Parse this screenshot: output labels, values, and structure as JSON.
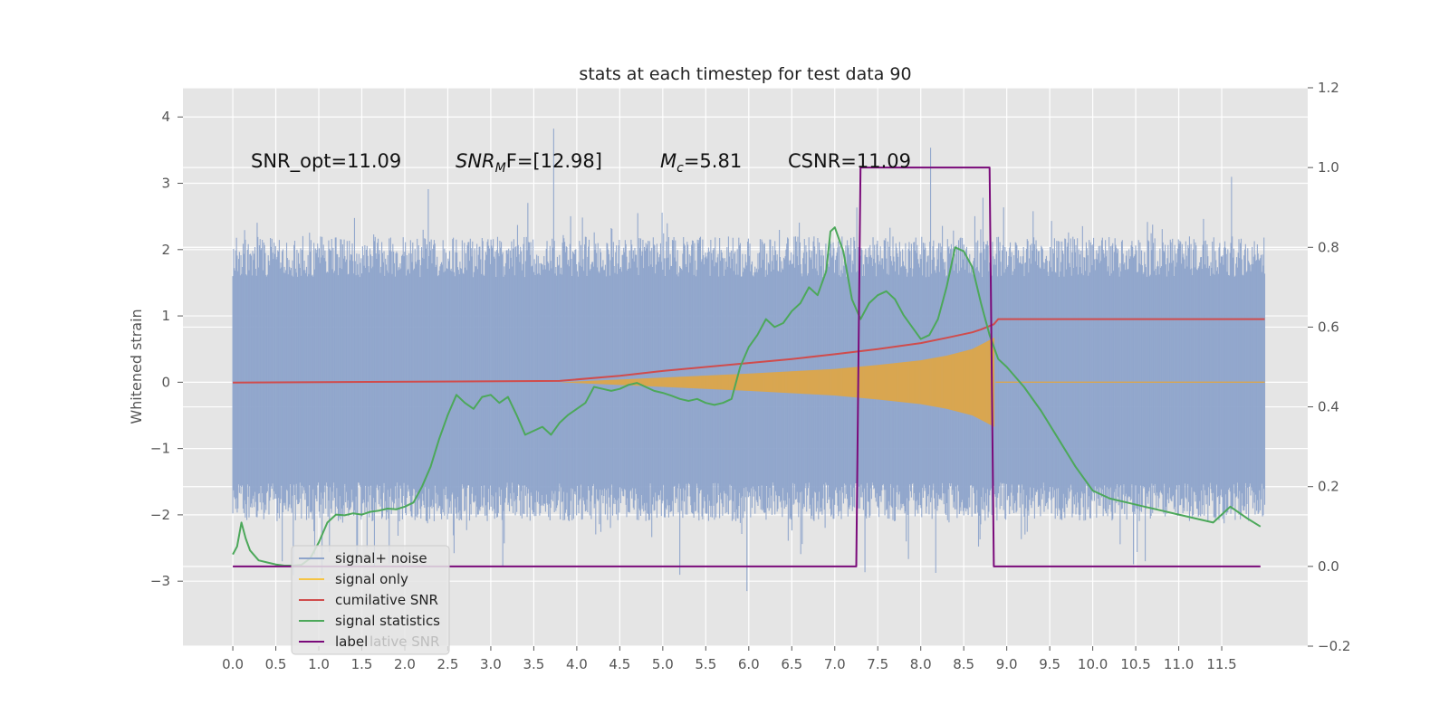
{
  "chart_data": {
    "type": "line",
    "title": "stats at each timestep for test data 90",
    "ylabel": "Whitened strain",
    "y2label": "",
    "xlim": [
      -0.58,
      12.5
    ],
    "ylim": [
      -3.98,
      4.44
    ],
    "y2lim": [
      -0.2,
      1.2
    ],
    "grid": true,
    "x_ticks": [
      "0.0",
      "0.5",
      "1.0",
      "1.5",
      "2.0",
      "2.5",
      "3.0",
      "3.5",
      "4.0",
      "4.5",
      "5.0",
      "5.5",
      "6.0",
      "6.5",
      "7.0",
      "7.5",
      "8.0",
      "8.5",
      "9.0",
      "9.5",
      "10.0",
      "10.5",
      "11.0",
      "11.5"
    ],
    "y_ticks": [
      4,
      3,
      2,
      1,
      0,
      -1,
      -2,
      -3
    ],
    "y_tick_labels": [
      "4",
      "3",
      "2",
      "1",
      "0",
      "−1",
      "−2",
      "−3"
    ],
    "y2_ticks": [
      1.2,
      1.0,
      0.8,
      0.6,
      0.4,
      0.2,
      0.0,
      -0.2
    ],
    "y2_tick_labels": [
      "1.2",
      "1.0",
      "0.8",
      "0.6",
      "0.4",
      "0.2",
      "0.0",
      "−0.2"
    ],
    "annotations": [
      {
        "text": "SNR_opt=11.09"
      },
      {
        "base": "SNR",
        "sub": "M",
        "rest": "F=[12.98]"
      },
      {
        "base": "M",
        "sub": "c",
        "rest": "=5.81"
      },
      {
        "text": "CSNR=11.09"
      }
    ],
    "legend_position": "lower left",
    "legend": [
      {
        "label": "signal+ noise",
        "color": "#8ea4cb"
      },
      {
        "label": "signal only",
        "color": "#f5c444"
      },
      {
        "label": "cumilative SNR",
        "color": "#d04c4c"
      },
      {
        "label": "signal statistics",
        "color": "#4ca85a"
      },
      {
        "label": "label",
        "color": "#7a0a7a"
      }
    ],
    "legend_overlap_text": "lative SNR",
    "series": [
      {
        "name": "signal+ noise",
        "axis": "left",
        "color": "#8ea4cb",
        "style": "noise",
        "x_range": [
          0.0,
          12.0
        ],
        "typical_envelope": [
          -2.1,
          2.2
        ],
        "extreme_range": [
          -3.6,
          4.1
        ]
      },
      {
        "name": "signal only",
        "axis": "left",
        "color": "#d9a650",
        "style": "chirp",
        "x_range": [
          3.8,
          8.85
        ],
        "amplitude": [
          [
            3.8,
            0.0
          ],
          [
            5.0,
            0.07
          ],
          [
            6.0,
            0.13
          ],
          [
            7.0,
            0.2
          ],
          [
            7.5,
            0.26
          ],
          [
            8.0,
            0.33
          ],
          [
            8.3,
            0.4
          ],
          [
            8.6,
            0.5
          ],
          [
            8.75,
            0.6
          ],
          [
            8.85,
            0.67
          ],
          [
            8.87,
            0.0
          ]
        ]
      },
      {
        "name": "cumilative SNR",
        "axis": "right",
        "color": "#d04c4c",
        "x": [
          0.0,
          3.8,
          4.5,
          5.0,
          5.5,
          6.0,
          6.5,
          7.0,
          7.5,
          8.0,
          8.3,
          8.6,
          8.7,
          8.85,
          8.9,
          12.0
        ],
        "y": [
          0.461,
          0.465,
          0.478,
          0.49,
          0.5,
          0.51,
          0.52,
          0.532,
          0.545,
          0.56,
          0.573,
          0.587,
          0.594,
          0.607,
          0.62,
          0.62
        ]
      },
      {
        "name": "signal statistics",
        "axis": "right",
        "color": "#4ca85a",
        "x": [
          0.0,
          0.05,
          0.1,
          0.15,
          0.2,
          0.3,
          0.4,
          0.5,
          0.6,
          0.7,
          0.8,
          0.9,
          1.0,
          1.1,
          1.2,
          1.3,
          1.4,
          1.5,
          1.6,
          1.7,
          1.8,
          1.9,
          2.0,
          2.1,
          2.2,
          2.3,
          2.4,
          2.5,
          2.6,
          2.7,
          2.8,
          2.9,
          3.0,
          3.1,
          3.2,
          3.3,
          3.4,
          3.5,
          3.6,
          3.7,
          3.8,
          3.9,
          4.0,
          4.1,
          4.2,
          4.3,
          4.4,
          4.5,
          4.6,
          4.7,
          4.8,
          4.9,
          5.0,
          5.1,
          5.2,
          5.3,
          5.4,
          5.5,
          5.6,
          5.7,
          5.8,
          5.9,
          6.0,
          6.1,
          6.2,
          6.3,
          6.4,
          6.5,
          6.6,
          6.7,
          6.8,
          6.9,
          6.95,
          7.0,
          7.1,
          7.2,
          7.3,
          7.4,
          7.5,
          7.6,
          7.7,
          7.8,
          7.9,
          8.0,
          8.1,
          8.2,
          8.3,
          8.4,
          8.5,
          8.6,
          8.7,
          8.8,
          8.9,
          9.0,
          9.2,
          9.4,
          9.6,
          9.8,
          10.0,
          10.2,
          10.4,
          10.6,
          10.8,
          11.0,
          11.2,
          11.4,
          11.5,
          11.6,
          11.8,
          11.95
        ],
        "y": [
          0.03,
          0.05,
          0.11,
          0.07,
          0.04,
          0.015,
          0.01,
          0.005,
          0.002,
          0.002,
          0.004,
          0.02,
          0.06,
          0.11,
          0.13,
          0.128,
          0.133,
          0.13,
          0.137,
          0.14,
          0.145,
          0.143,
          0.15,
          0.16,
          0.2,
          0.25,
          0.32,
          0.38,
          0.43,
          0.41,
          0.395,
          0.425,
          0.43,
          0.41,
          0.425,
          0.38,
          0.33,
          0.34,
          0.35,
          0.33,
          0.36,
          0.38,
          0.395,
          0.41,
          0.45,
          0.445,
          0.44,
          0.445,
          0.455,
          0.46,
          0.45,
          0.44,
          0.435,
          0.428,
          0.42,
          0.415,
          0.42,
          0.41,
          0.405,
          0.41,
          0.42,
          0.5,
          0.55,
          0.58,
          0.62,
          0.6,
          0.61,
          0.64,
          0.66,
          0.7,
          0.68,
          0.74,
          0.84,
          0.85,
          0.79,
          0.67,
          0.62,
          0.66,
          0.68,
          0.69,
          0.67,
          0.63,
          0.6,
          0.57,
          0.58,
          0.62,
          0.7,
          0.8,
          0.79,
          0.75,
          0.66,
          0.58,
          0.52,
          0.5,
          0.45,
          0.39,
          0.32,
          0.25,
          0.19,
          0.17,
          0.16,
          0.15,
          0.14,
          0.13,
          0.12,
          0.11,
          0.13,
          0.15,
          0.12,
          0.1
        ]
      },
      {
        "name": "label",
        "axis": "right",
        "color": "#7a0a7a",
        "x": [
          0.0,
          7.25,
          7.3,
          8.8,
          8.85,
          11.95
        ],
        "y": [
          0.0,
          0.0,
          1.0,
          1.0,
          0.0,
          0.0
        ]
      }
    ]
  }
}
